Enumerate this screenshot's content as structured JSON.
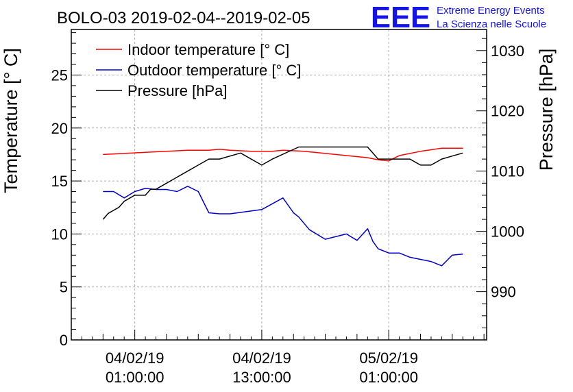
{
  "header": {
    "title": "BOLO-03 2019-02-04--2019-02-05",
    "logo_letters": "EEE",
    "logo_line1": "Extreme Energy Events",
    "logo_line2": "La Scienza nelle Scuole"
  },
  "colors": {
    "indoor": "#ff0000",
    "outdoor": "#0000cc",
    "pressure": "#000000",
    "logo": "#1414e6",
    "grid": "#aaaaaa"
  },
  "chart_data": {
    "type": "line",
    "title": "BOLO-03 2019-02-04--2019-02-05",
    "ylabel": "Temperature [° C]",
    "y2label": "Pressure [hPa]",
    "xlabel": "",
    "grid": true,
    "legend": "top-left",
    "ylim": [
      0,
      29.3
    ],
    "y2lim": [
      982,
      1033.5
    ],
    "xlim": [
      "2019-02-03 19:00",
      "2019-02-05 10:15"
    ],
    "y_ticks": [
      0,
      5,
      10,
      15,
      20,
      25
    ],
    "y_tick_labels": [
      "0",
      "5",
      "10",
      "15",
      "20",
      "25"
    ],
    "y2_ticks": [
      990,
      1000,
      1010,
      1020,
      1030
    ],
    "y2_tick_labels": [
      "990",
      "1000",
      "1010",
      "1020",
      "1030"
    ],
    "x_ticks": [
      "2019-02-04 01:00",
      "2019-02-04 13:00",
      "2019-02-05 01:00"
    ],
    "x_tick_labels": [
      [
        "04/02/19",
        "01:00:00"
      ],
      [
        "04/02/19",
        "13:00:00"
      ],
      [
        "05/02/19",
        "01:00:00"
      ]
    ],
    "series": [
      {
        "name": "Indoor temperature [° C]",
        "axis": "left",
        "x": [
          "2019-02-03 22:00",
          "2019-02-04 00:00",
          "2019-02-04 02:00",
          "2019-02-04 04:00",
          "2019-02-04 06:00",
          "2019-02-04 08:00",
          "2019-02-04 09:00",
          "2019-02-04 10:00",
          "2019-02-04 12:00",
          "2019-02-04 14:00",
          "2019-02-04 15:00",
          "2019-02-04 17:00",
          "2019-02-04 19:00",
          "2019-02-04 21:00",
          "2019-02-04 23:00",
          "2019-02-05 00:00",
          "2019-02-05 01:00",
          "2019-02-05 02:00",
          "2019-02-05 04:00",
          "2019-02-05 06:00",
          "2019-02-05 08:00"
        ],
        "values": [
          17.5,
          17.6,
          17.7,
          17.8,
          17.9,
          17.9,
          18.0,
          17.9,
          17.8,
          17.8,
          17.9,
          17.8,
          17.6,
          17.4,
          17.2,
          17.0,
          16.9,
          17.4,
          17.8,
          18.1,
          18.1
        ]
      },
      {
        "name": "Outdoor temperature [° C]",
        "axis": "left",
        "x": [
          "2019-02-03 22:00",
          "2019-02-03 23:00",
          "2019-02-04 00:00",
          "2019-02-04 01:00",
          "2019-02-04 02:00",
          "2019-02-04 03:00",
          "2019-02-04 04:00",
          "2019-02-04 05:00",
          "2019-02-04 06:00",
          "2019-02-04 07:00",
          "2019-02-04 08:00",
          "2019-02-04 09:00",
          "2019-02-04 10:00",
          "2019-02-04 13:00",
          "2019-02-04 15:00",
          "2019-02-04 16:00",
          "2019-02-04 16:30",
          "2019-02-04 17:30",
          "2019-02-04 19:00",
          "2019-02-04 21:00",
          "2019-02-04 22:00",
          "2019-02-04 23:00",
          "2019-02-04 23:30",
          "2019-02-05 00:00",
          "2019-02-05 01:00",
          "2019-02-05 02:00",
          "2019-02-05 03:00",
          "2019-02-05 04:00",
          "2019-02-05 05:00",
          "2019-02-05 06:00",
          "2019-02-05 07:00",
          "2019-02-05 08:00"
        ],
        "values": [
          14.0,
          14.0,
          13.4,
          14.0,
          14.3,
          14.2,
          14.2,
          14.0,
          14.5,
          14.0,
          12.0,
          11.9,
          11.9,
          12.3,
          13.4,
          12.0,
          11.6,
          10.4,
          9.5,
          10.0,
          9.4,
          10.5,
          9.3,
          8.6,
          8.2,
          8.2,
          7.8,
          7.6,
          7.4,
          7.0,
          8.0,
          8.1
        ]
      },
      {
        "name": "Pressure [hPa]",
        "axis": "right",
        "x": [
          "2019-02-03 22:00",
          "2019-02-03 22:30",
          "2019-02-03 23:30",
          "2019-02-04 00:00",
          "2019-02-04 01:00",
          "2019-02-04 02:00",
          "2019-02-04 02:30",
          "2019-02-04 03:00",
          "2019-02-04 04:00",
          "2019-02-04 05:00",
          "2019-02-04 06:00",
          "2019-02-04 07:00",
          "2019-02-04 08:00",
          "2019-02-04 09:00",
          "2019-02-04 11:00",
          "2019-02-04 13:00",
          "2019-02-04 14:00",
          "2019-02-04 16:30",
          "2019-02-04 18:00",
          "2019-02-04 20:00",
          "2019-02-04 22:00",
          "2019-02-04 23:00",
          "2019-02-05 00:00",
          "2019-02-05 02:00",
          "2019-02-05 03:00",
          "2019-02-05 04:00",
          "2019-02-05 05:00",
          "2019-02-05 06:00",
          "2019-02-05 07:00",
          "2019-02-05 08:00"
        ],
        "values": [
          1002,
          1003,
          1004,
          1005,
          1006,
          1006,
          1007,
          1007,
          1008,
          1009,
          1010,
          1011,
          1012,
          1012,
          1013,
          1011,
          1012,
          1014,
          1014,
          1014,
          1014,
          1014,
          1012,
          1012,
          1012,
          1011,
          1011,
          1012,
          1012.5,
          1013
        ]
      }
    ]
  }
}
